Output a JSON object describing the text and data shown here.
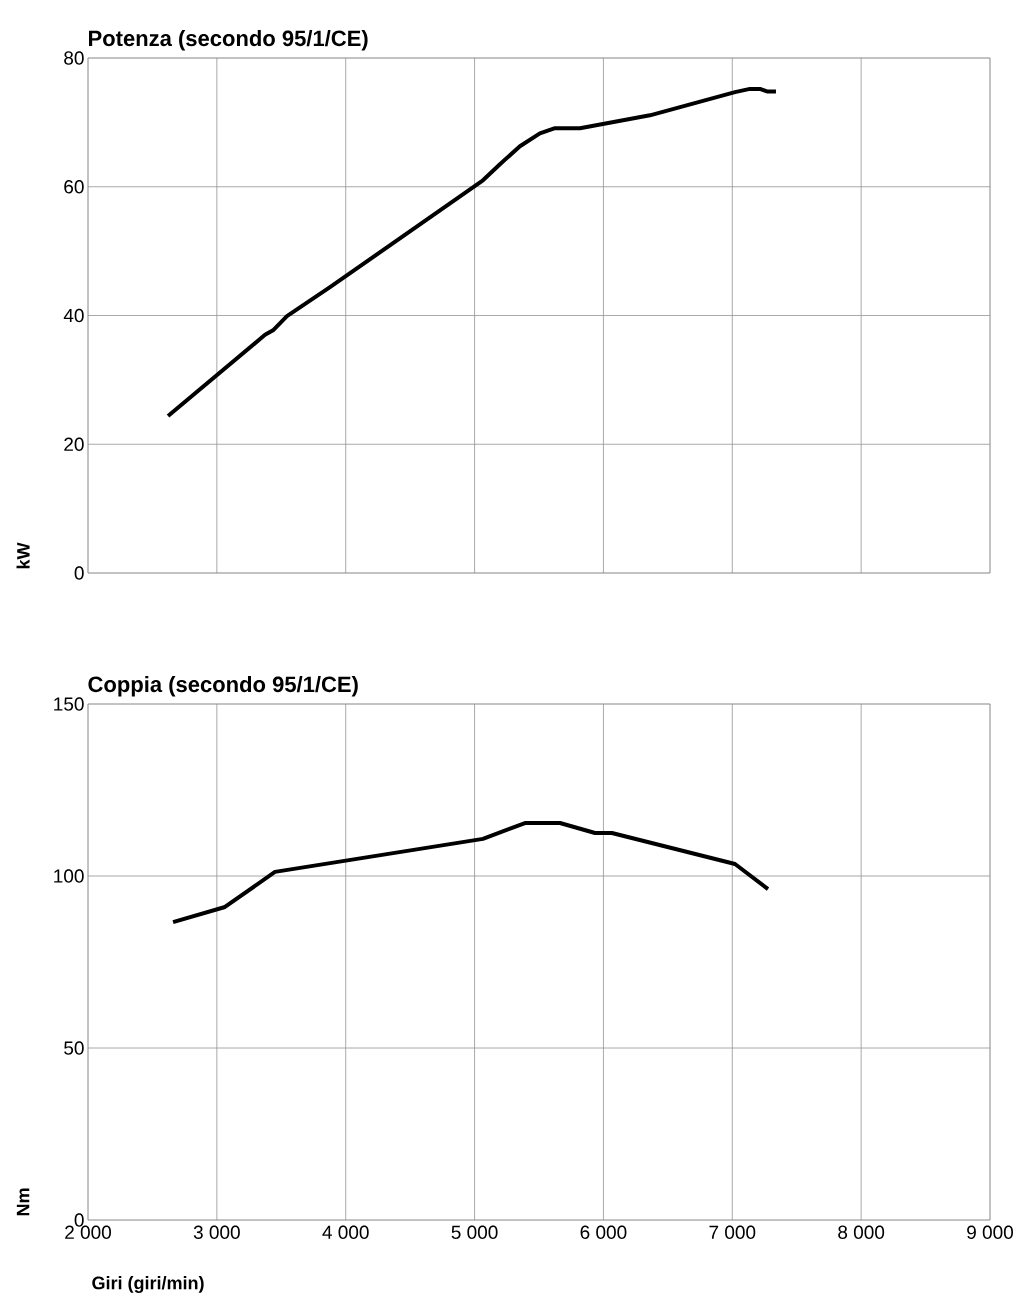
{
  "chart_data": [
    {
      "type": "line",
      "title": "Potenza (secondo 95/1/CE)",
      "ylabel": "kW",
      "color": "#000000",
      "grid": true,
      "tick_labels": "y",
      "xlim": [
        2000,
        9000
      ],
      "ylim": [
        0,
        80
      ],
      "yticks": [
        0,
        20,
        40,
        60,
        80
      ],
      "xticks": [
        2000,
        3000,
        4000,
        5000,
        6000,
        7000,
        8000,
        9000
      ],
      "x": [
        2621,
        3374,
        3436,
        3544,
        3878,
        5065,
        5197,
        5352,
        5507,
        5624,
        5818,
        6361,
        7021,
        7137,
        7215,
        7269,
        7339
      ],
      "values": [
        24.4,
        37.0,
        37.7,
        39.9,
        44.4,
        61.0,
        63.5,
        66.3,
        68.3,
        69.1,
        69.1,
        71.1,
        74.7,
        75.2,
        75.2,
        74.8,
        74.8
      ]
    },
    {
      "type": "line",
      "title": "Coppia (secondo 95/1/CE)",
      "ylabel": "Nm",
      "xlabel": "Giri (giri/min)",
      "color": "#000000",
      "grid": true,
      "xlim": [
        2000,
        9000
      ],
      "ylim": [
        0,
        150
      ],
      "yticks": [
        0,
        50,
        100,
        150
      ],
      "xticks": [
        {
          "value": 2000,
          "label": "2 000"
        },
        {
          "value": 3000,
          "label": "3 000"
        },
        {
          "value": 4000,
          "label": "4 000"
        },
        {
          "value": 5000,
          "label": "5 000"
        },
        {
          "value": 6000,
          "label": "6 000"
        },
        {
          "value": 7000,
          "label": "7 000"
        },
        {
          "value": 8000,
          "label": "8 000"
        },
        {
          "value": 9000,
          "label": "9 000"
        }
      ],
      "x": [
        2660,
        3063,
        3451,
        5065,
        5391,
        5663,
        5935,
        6066,
        7021,
        7277
      ],
      "values": [
        86.6,
        91.0,
        101.2,
        110.8,
        115.4,
        115.4,
        112.5,
        112.5,
        103.5,
        96.2
      ]
    }
  ]
}
